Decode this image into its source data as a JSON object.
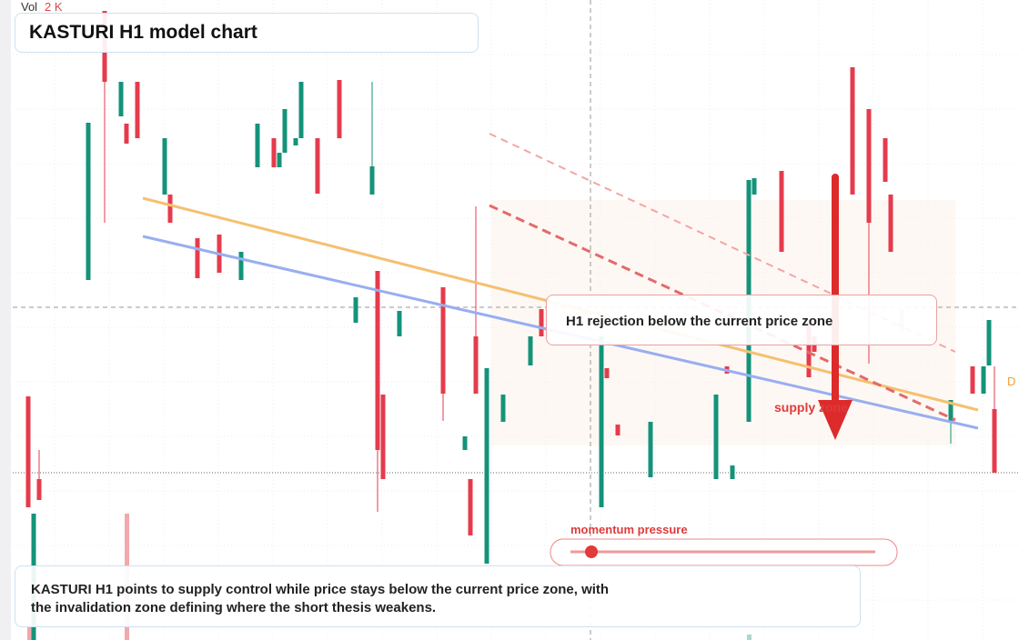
{
  "header": {
    "volume_label": "Vol",
    "volume_value": "2 K",
    "title": "KASTURI H1 model chart"
  },
  "annotations": {
    "rejection": "H1 rejection below the current price zone",
    "supply": "supply zone",
    "momentum": "momentum pressure",
    "edge_label": "D"
  },
  "summary": "KASTURI H1 points to supply control while price stays below the current price zone, with the invalidation zone defining where the short thesis weakens."
}
